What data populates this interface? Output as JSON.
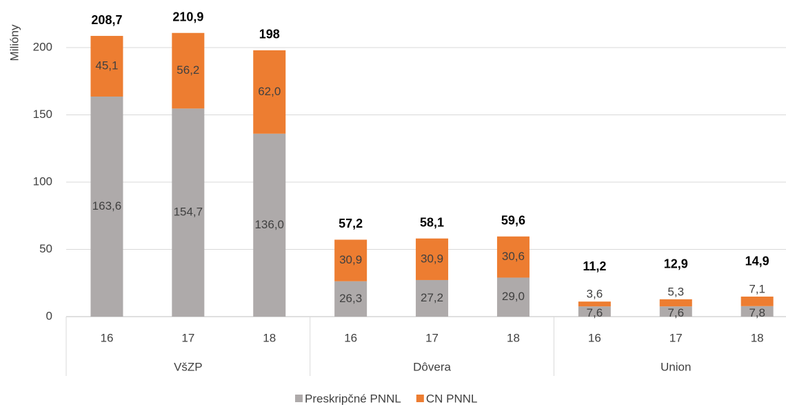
{
  "chart_data": {
    "type": "stacked_bar",
    "y_label": "Milióny",
    "groups": [
      "VšZP",
      "Dôvera",
      "Union"
    ],
    "categories": [
      "16",
      "17",
      "18",
      "16",
      "17",
      "18",
      "16",
      "17",
      "18"
    ],
    "series": [
      {
        "name": "Preskripčné PNNL",
        "color": "#aeaaaa",
        "values": [
          163.6,
          154.7,
          136.0,
          26.3,
          27.2,
          29.0,
          7.6,
          7.6,
          7.8
        ],
        "value_labels": [
          "163,6",
          "154,7",
          "136,0",
          "26,3",
          "27,2",
          "29,0",
          "7,6",
          "7,6",
          "7,8"
        ]
      },
      {
        "name": "CN PNNL",
        "color": "#ed7d31",
        "values": [
          45.1,
          56.2,
          62.0,
          30.9,
          30.9,
          30.6,
          3.6,
          5.3,
          7.1
        ],
        "value_labels": [
          "45,1",
          "56,2",
          "62,0",
          "30,9",
          "30,9",
          "30,6",
          "3,6",
          "5,3",
          "7,1"
        ]
      }
    ],
    "totals": {
      "values": [
        208.7,
        210.9,
        198,
        57.2,
        58.1,
        59.6,
        11.2,
        12.9,
        14.9
      ],
      "value_labels": [
        "208,7",
        "210,9",
        "198",
        "57,2",
        "58,1",
        "59,6",
        "11,2",
        "12,9",
        "14,9"
      ]
    },
    "ylim": [
      0,
      220
    ],
    "yticks": [
      0,
      50,
      100,
      150,
      200
    ],
    "grid": true,
    "legend": "bottom"
  }
}
